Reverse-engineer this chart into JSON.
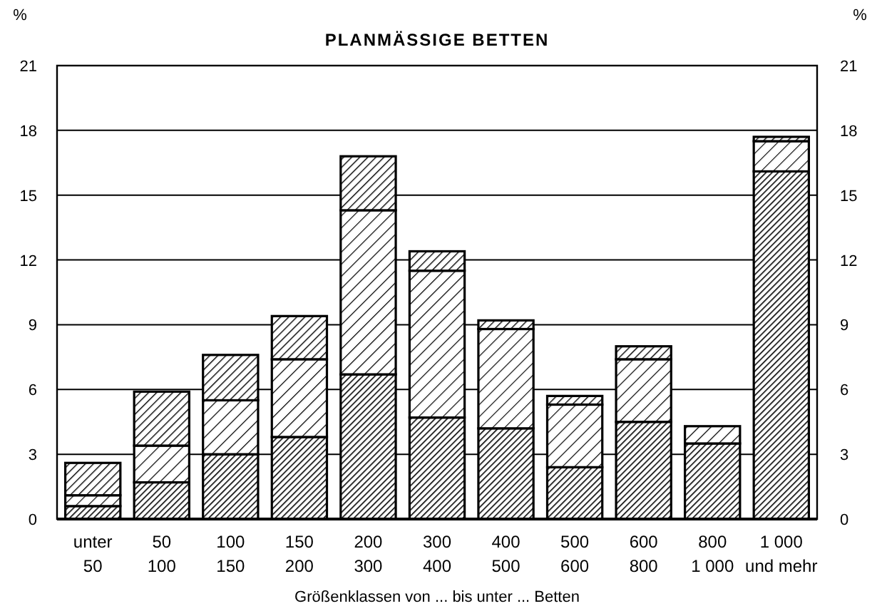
{
  "chart_data": {
    "type": "bar",
    "title": "PLANMÄSSIGE BETTEN",
    "xlabel": "Größenklassen von ... bis unter ... Betten",
    "ylabel": "%",
    "y2label": "%",
    "categories": [
      "unter\n50",
      "50\n100",
      "100\n150",
      "150\n200",
      "200\n300",
      "300\n400",
      "400\n500",
      "500\n600",
      "600\n800",
      "800\n1 000",
      "1 000\nund mehr"
    ],
    "stacked": true,
    "series": [
      {
        "color": "#000000",
        "values": [
          0.6,
          1.7,
          3.0,
          3.8,
          6.7,
          4.7,
          4.2,
          2.4,
          4.5,
          3.5,
          16.1
        ]
      },
      {
        "color": "#000000",
        "values": [
          0.5,
          1.7,
          2.5,
          3.6,
          7.6,
          6.8,
          4.6,
          2.9,
          2.9,
          0.8,
          1.4
        ]
      },
      {
        "color": "#000000",
        "values": [
          1.5,
          2.5,
          2.1,
          2.0,
          2.5,
          0.9,
          0.4,
          0.4,
          0.6,
          0,
          0.2
        ]
      }
    ],
    "ylim": [
      0,
      21
    ],
    "yticks": [
      0,
      3,
      6,
      9,
      12,
      15,
      18,
      21
    ],
    "y2lim": [
      0,
      21
    ],
    "y2ticks": [
      0,
      3,
      6,
      9,
      12,
      15,
      18,
      21
    ],
    "grid": "y"
  }
}
